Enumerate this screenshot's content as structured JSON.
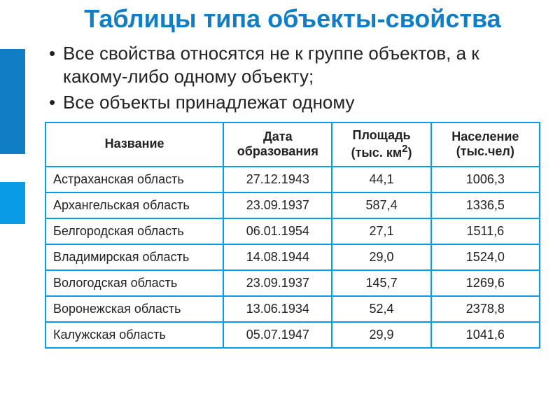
{
  "colors": {
    "accent": "#107dc5",
    "accent_light": "#0a9be6",
    "text": "#222222",
    "background": "#ffffff",
    "border": "#0a9be6"
  },
  "typography": {
    "title_fontsize": 36,
    "title_weight": "bold",
    "bullet_fontsize": 26,
    "table_fontsize": 18
  },
  "title": "Таблицы типа объекты-свойства",
  "bullets": [
    "Все свойства относятся не к группе объектов, а к какому-либо одному объекту;",
    "Все объекты принадлежат одному"
  ],
  "table": {
    "type": "table",
    "columns": [
      {
        "label": "Название",
        "sublabel": "",
        "width_pct": 36,
        "align": "left"
      },
      {
        "label": "Дата",
        "sublabel": "образования",
        "width_pct": 22,
        "align": "center"
      },
      {
        "label": "Площадь",
        "sublabel": "(тыс. км2)",
        "width_pct": 20,
        "align": "center",
        "sup": "2"
      },
      {
        "label": "Население",
        "sublabel": "(тыс.чел)",
        "width_pct": 22,
        "align": "center"
      }
    ],
    "rows": [
      [
        "Астраханская область",
        "27.12.1943",
        "44,1",
        "1006,3"
      ],
      [
        "Архангельская область",
        "23.09.1937",
        "587,4",
        "1336,5"
      ],
      [
        "Белгородская область",
        "06.01.1954",
        "27,1",
        "1511,6"
      ],
      [
        "Владимирская область",
        "14.08.1944",
        "29,0",
        "1524,0"
      ],
      [
        "Вологодская область",
        "23.09.1937",
        "145,7",
        "1269,6"
      ],
      [
        "Воронежская область",
        "13.06.1934",
        "52,4",
        "2378,8"
      ],
      [
        "Калужская область",
        "05.07.1947",
        "29,9",
        "1041,6"
      ]
    ]
  }
}
